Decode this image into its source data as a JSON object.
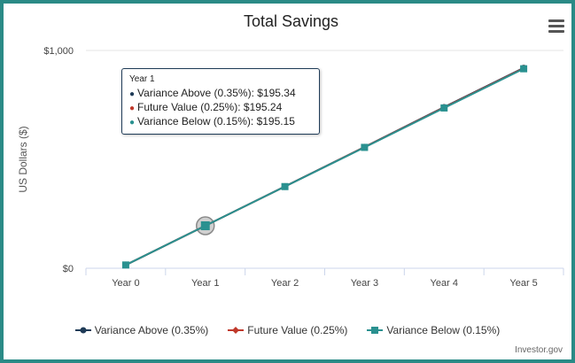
{
  "title": "Total Savings",
  "credit": "Investor.gov",
  "chart_data": {
    "type": "line",
    "title": "Total Savings",
    "ylabel": "US Dollars ($)",
    "categories": [
      "Year 0",
      "Year 1",
      "Year 2",
      "Year 3",
      "Year 4",
      "Year 5"
    ],
    "y_ticks": [
      "$0",
      "$1,000"
    ],
    "ylim": [
      0,
      1000
    ],
    "grid": true,
    "legend_position": "bottom",
    "series": [
      {
        "name": "Variance Above (0.35%)",
        "color": "#1f3b57",
        "marker": "circle",
        "values": [
          15,
          195.34,
          376,
          557,
          740,
          920
        ]
      },
      {
        "name": "Future Value (0.25%)",
        "color": "#c0392b",
        "marker": "diamond",
        "values": [
          15,
          195.24,
          375,
          556,
          738,
          918
        ]
      },
      {
        "name": "Variance Below (0.15%)",
        "color": "#2a9190",
        "marker": "square",
        "values": [
          15,
          195.15,
          375,
          555,
          736,
          916
        ]
      }
    ],
    "tooltip": {
      "header": "Year 1",
      "category_index": 1,
      "rows": [
        {
          "label": "Variance Above (0.35%)",
          "value": "$195.34",
          "color": "#1f3b57"
        },
        {
          "label": "Future Value (0.25%)",
          "value": "$195.24",
          "color": "#c0392b"
        },
        {
          "label": "Variance Below (0.15%)",
          "value": "$195.15",
          "color": "#2a9190"
        }
      ]
    }
  }
}
